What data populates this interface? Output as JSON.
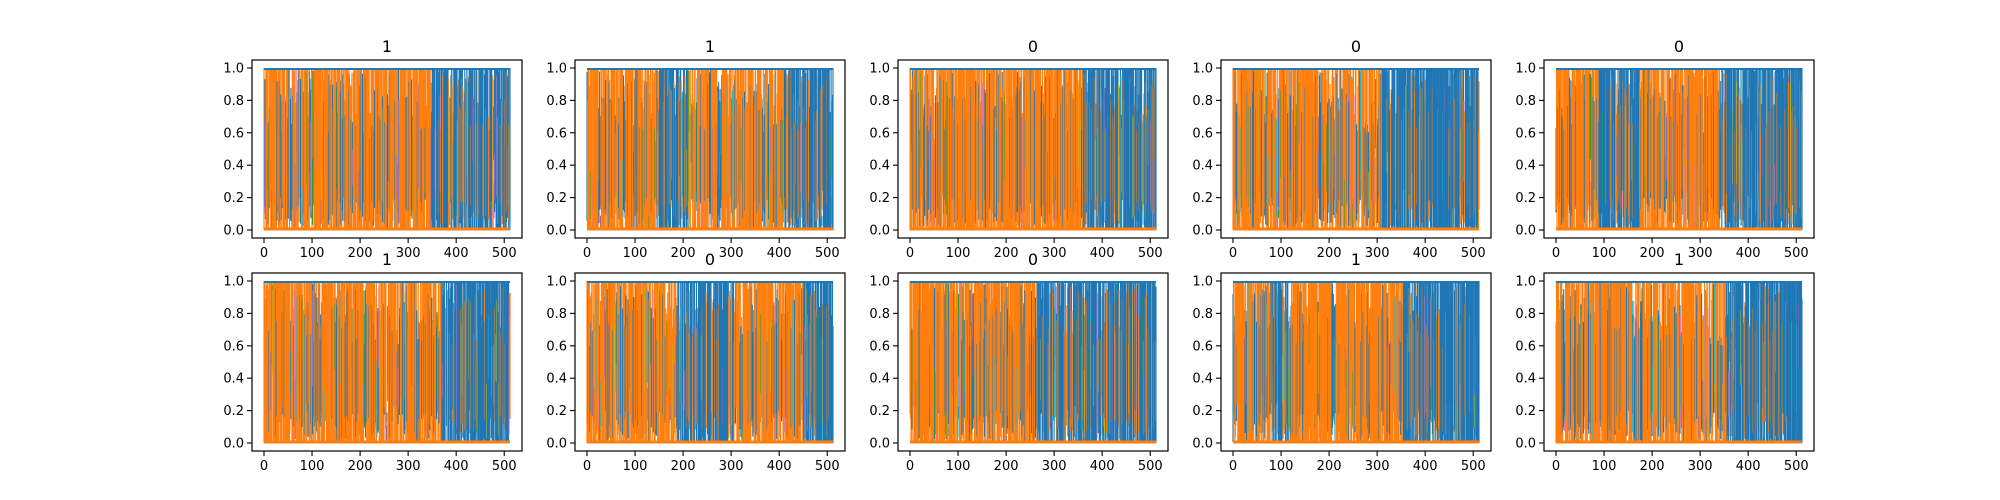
{
  "chart_data": {
    "type": "line",
    "layout": {
      "rows": 2,
      "cols": 5
    },
    "series_colors": [
      "#1f77b4",
      "#ff7f0e",
      "#17becf",
      "#bcbd22",
      "#2ca02c",
      "#e377c2",
      "#9467bd"
    ],
    "xlim": [
      0,
      512
    ],
    "ylim": [
      0,
      1.0
    ],
    "xticks": [
      0,
      100,
      200,
      300,
      400,
      500
    ],
    "yticks": [
      0.0,
      0.2,
      0.4,
      0.6,
      0.8,
      1.0
    ],
    "xtick_labels": [
      "0",
      "100",
      "200",
      "300",
      "400",
      "500"
    ],
    "ytick_labels": [
      "0.0",
      "0.2",
      "0.4",
      "0.6",
      "0.8",
      "1.0"
    ],
    "grid": false,
    "panels": [
      {
        "title": "1",
        "segments": [
          [
            0,
            350,
            "orange"
          ],
          [
            350,
            512,
            "blue"
          ]
        ]
      },
      {
        "title": "1",
        "segments": [
          [
            0,
            145,
            "orange"
          ],
          [
            145,
            215,
            "blue"
          ],
          [
            215,
            410,
            "orange"
          ],
          [
            410,
            512,
            "blue"
          ]
        ]
      },
      {
        "title": "0",
        "segments": [
          [
            0,
            360,
            "orange"
          ],
          [
            360,
            512,
            "blue"
          ]
        ]
      },
      {
        "title": "0",
        "segments": [
          [
            0,
            310,
            "orange"
          ],
          [
            310,
            512,
            "blue"
          ]
        ]
      },
      {
        "title": "0",
        "segments": [
          [
            0,
            90,
            "orange"
          ],
          [
            90,
            175,
            "blue"
          ],
          [
            175,
            345,
            "orange"
          ],
          [
            345,
            512,
            "blue"
          ]
        ]
      },
      {
        "title": "1",
        "segments": [
          [
            0,
            370,
            "orange"
          ],
          [
            370,
            512,
            "blue"
          ]
        ]
      },
      {
        "title": "0",
        "segments": [
          [
            0,
            190,
            "orange"
          ],
          [
            190,
            310,
            "blue"
          ],
          [
            310,
            450,
            "orange"
          ],
          [
            450,
            512,
            "blue"
          ]
        ]
      },
      {
        "title": "0",
        "segments": [
          [
            0,
            265,
            "orange"
          ],
          [
            265,
            512,
            "blue"
          ]
        ]
      },
      {
        "title": "1",
        "segments": [
          [
            0,
            80,
            "orange"
          ],
          [
            80,
            120,
            "blue"
          ],
          [
            120,
            355,
            "orange"
          ],
          [
            355,
            512,
            "blue"
          ]
        ]
      },
      {
        "title": "1",
        "segments": [
          [
            0,
            355,
            "orange"
          ],
          [
            355,
            512,
            "blue"
          ]
        ]
      }
    ]
  }
}
